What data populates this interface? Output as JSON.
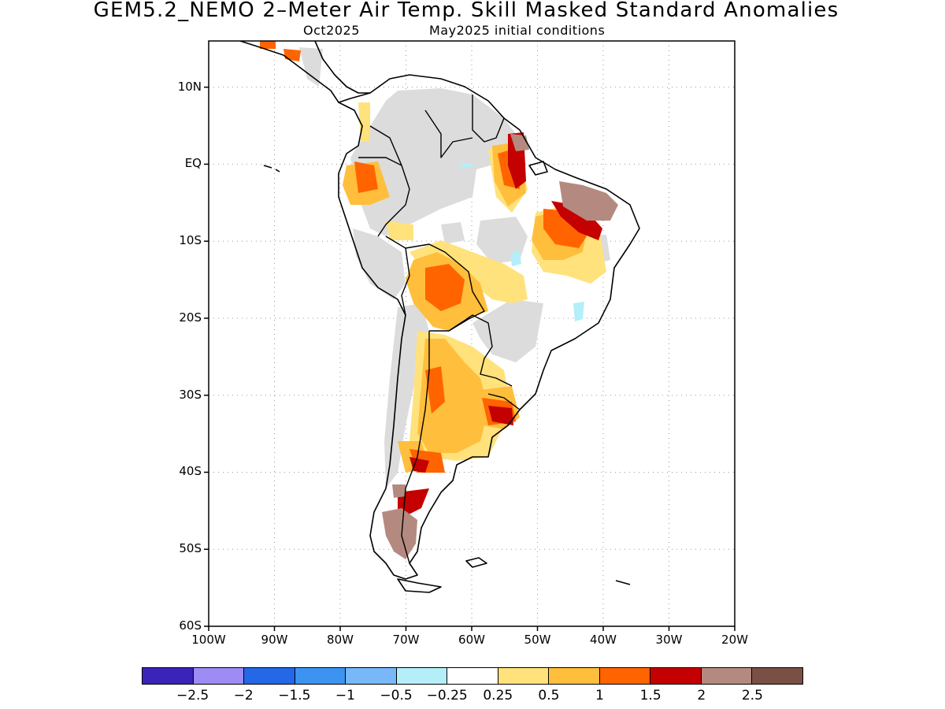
{
  "title": "GEM5.2_NEMO 2–Meter Air Temp. Skill Masked Standard Anomalies",
  "subtitle_left": "Oct2025",
  "subtitle_right": "May2025 initial conditions",
  "lat_labels": [
    "10N",
    "EQ",
    "10S",
    "20S",
    "30S",
    "40S",
    "50S",
    "60S"
  ],
  "lon_labels": [
    "100W",
    "90W",
    "80W",
    "70W",
    "60W",
    "50W",
    "40W",
    "30W",
    "20W"
  ],
  "colorbar": {
    "colors": [
      "#3a24b8",
      "#9e8cf4",
      "#2468e8",
      "#3c94f0",
      "#78b8f8",
      "#b4eef8",
      "#ffffff",
      "#ffe27c",
      "#ffbe3c",
      "#ff6400",
      "#c40000",
      "#b48a80",
      "#7a5044"
    ],
    "labels": [
      "−2.5",
      "−2",
      "−1.5",
      "−1",
      "−0.5",
      "−0.25",
      "0.25",
      "0.5",
      "1",
      "1.5",
      "2",
      "2.5"
    ]
  },
  "map": {
    "lon_range": [
      -100,
      -20
    ],
    "lat_range": [
      -60,
      16
    ],
    "land_mask_color": "#dcdcdc"
  }
}
